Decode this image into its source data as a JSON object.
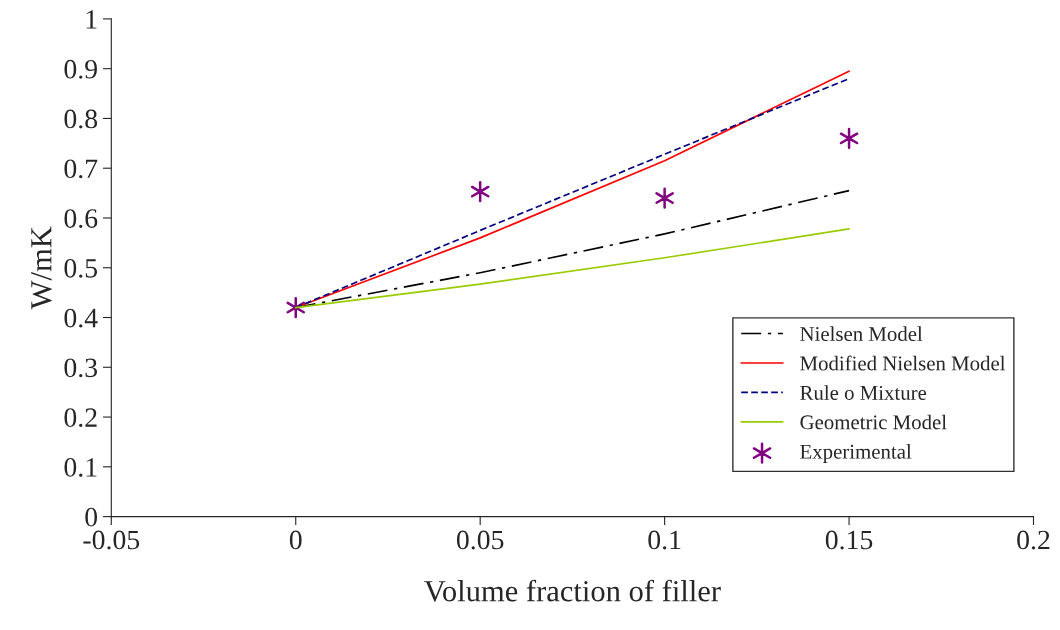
{
  "chart_data": {
    "type": "line",
    "xlabel": "Volume fraction of filler",
    "ylabel": "W/mK",
    "x": [
      0,
      0.05,
      0.1,
      0.15
    ],
    "series": [
      {
        "name": "Nielsen Model",
        "color": "#000000",
        "line_style": "dashdot",
        "marker": "none",
        "values": [
          0.42,
          0.49,
          0.568,
          0.655
        ]
      },
      {
        "name": "Modified Nielsen Model",
        "color": "#ff0000",
        "line_style": "solid",
        "marker": "none",
        "values": [
          0.42,
          0.56,
          0.715,
          0.895
        ]
      },
      {
        "name": "Rule o Mixture",
        "color": "#000080",
        "line_style": "dashed",
        "marker": "none",
        "values": [
          0.42,
          0.575,
          0.728,
          0.88
        ]
      },
      {
        "name": "Geometric Model",
        "color": "#99cc00",
        "line_style": "solid",
        "marker": "none",
        "values": [
          0.42,
          0.467,
          0.52,
          0.578
        ]
      },
      {
        "name": "Experimental",
        "type": "scatter",
        "color": "#800080",
        "marker": "cross",
        "values": [
          0.42,
          0.653,
          0.64,
          0.76
        ]
      }
    ],
    "xlim": [
      -0.05,
      0.2
    ],
    "xticks": [
      -0.05,
      0,
      0.05,
      0.1,
      0.15,
      0.2
    ],
    "ylim": [
      0,
      1
    ],
    "yticks": [
      0,
      0.1,
      0.2,
      0.3,
      0.4,
      0.5,
      0.6,
      0.7,
      0.8,
      0.9,
      1
    ],
    "grid": false,
    "legend": "lower right"
  }
}
